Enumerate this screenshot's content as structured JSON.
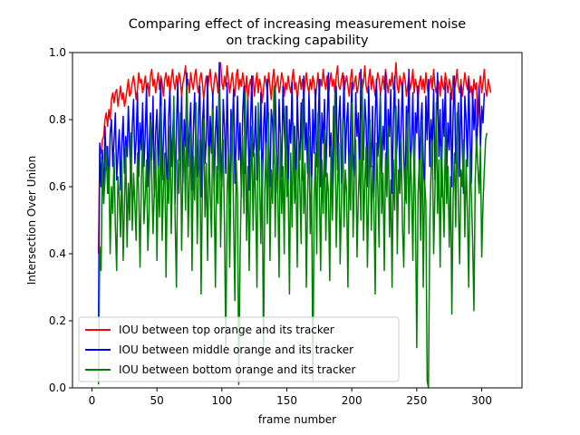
{
  "chart_data": {
    "type": "line",
    "title_lines": [
      "Comparing effect of increasing measurement noise",
      "on tracking capability"
    ],
    "xlabel": "frame number",
    "ylabel": "Intersection Over Union",
    "xlim": [
      -15,
      331
    ],
    "ylim": [
      0.0,
      1.0
    ],
    "xticks": [
      0,
      50,
      100,
      150,
      200,
      250,
      300
    ],
    "yticks": [
      0.0,
      0.2,
      0.4,
      0.6,
      0.8,
      1.0
    ],
    "xtick_labels": [
      "0",
      "50",
      "100",
      "150",
      "200",
      "250",
      "300"
    ],
    "ytick_labels": [
      "0.0",
      "0.2",
      "0.4",
      "0.6",
      "0.8",
      "1.0"
    ],
    "legend_position": "lower-left",
    "grid": false,
    "x": {
      "start": 5,
      "end": 315,
      "step": 1
    },
    "series": [
      {
        "name": "IOU between top orange and its tracker",
        "color": "#ff0000",
        "values": [
          0.4,
          0.72,
          0.7,
          0.74,
          0.75,
          0.8,
          0.82,
          0.78,
          0.83,
          0.8,
          0.86,
          0.88,
          0.85,
          0.88,
          0.89,
          0.84,
          0.87,
          0.9,
          0.86,
          0.88,
          0.84,
          0.86,
          0.89,
          0.92,
          0.87,
          0.88,
          0.91,
          0.93,
          0.9,
          0.86,
          0.89,
          0.94,
          0.91,
          0.92,
          0.88,
          0.9,
          0.93,
          0.89,
          0.91,
          0.87,
          0.93,
          0.95,
          0.9,
          0.92,
          0.88,
          0.91,
          0.94,
          0.89,
          0.93,
          0.91,
          0.87,
          0.92,
          0.94,
          0.9,
          0.93,
          0.88,
          0.92,
          0.95,
          0.91,
          0.89,
          0.93,
          0.9,
          0.94,
          0.92,
          0.87,
          0.91,
          0.93,
          0.96,
          0.9,
          0.92,
          0.88,
          0.94,
          0.91,
          0.89,
          0.93,
          0.95,
          0.9,
          0.88,
          0.92,
          0.94,
          0.91,
          0.86,
          0.9,
          0.93,
          0.89,
          0.92,
          0.95,
          0.9,
          0.87,
          0.91,
          0.94,
          0.92,
          0.88,
          0.95,
          0.97,
          0.91,
          0.89,
          0.93,
          0.9,
          0.96,
          0.92,
          0.88,
          0.91,
          0.94,
          0.9,
          0.87,
          0.93,
          0.95,
          0.89,
          0.92,
          0.9,
          0.94,
          0.91,
          0.88,
          0.93,
          0.86,
          0.9,
          0.92,
          0.89,
          0.93,
          0.87,
          0.91,
          0.94,
          0.88,
          0.92,
          0.9,
          0.85,
          0.89,
          0.93,
          0.91,
          0.88,
          0.94,
          0.9,
          0.86,
          0.92,
          0.95,
          0.89,
          0.91,
          0.93,
          0.88,
          0.9,
          0.94,
          0.92,
          0.87,
          0.91,
          0.89,
          0.93,
          0.9,
          0.88,
          0.92,
          0.95,
          0.89,
          0.91,
          0.86,
          0.9,
          0.93,
          0.89,
          0.92,
          0.87,
          0.91,
          0.94,
          0.9,
          0.88,
          0.92,
          0.89,
          0.93,
          0.91,
          0.86,
          0.9,
          0.94,
          0.88,
          0.92,
          0.9,
          0.95,
          0.91,
          0.89,
          0.93,
          0.87,
          0.91,
          0.94,
          0.9,
          0.92,
          0.88,
          0.93,
          0.96,
          0.9,
          0.89,
          0.92,
          0.94,
          0.88,
          0.91,
          0.93,
          0.9,
          0.87,
          0.92,
          0.95,
          0.89,
          0.91,
          0.93,
          0.88,
          0.9,
          0.94,
          0.92,
          0.89,
          0.91,
          0.96,
          0.9,
          0.88,
          0.92,
          0.95,
          0.89,
          0.93,
          0.9,
          0.87,
          0.91,
          0.94,
          0.92,
          0.88,
          0.9,
          0.93,
          0.89,
          0.95,
          0.91,
          0.88,
          0.92,
          0.9,
          0.94,
          0.89,
          0.91,
          0.97,
          0.9,
          0.88,
          0.93,
          0.91,
          0.89,
          0.94,
          0.92,
          0.87,
          0.9,
          0.93,
          0.89,
          0.91,
          0.95,
          0.88,
          0.92,
          0.9,
          0.86,
          0.91,
          0.93,
          0.89,
          0.92,
          0.88,
          0.94,
          0.9,
          0.87,
          0.91,
          0.93,
          0.89,
          0.95,
          0.9,
          0.88,
          0.92,
          0.91,
          0.87,
          0.93,
          0.9,
          0.89,
          0.94,
          0.91,
          0.88,
          0.92,
          0.9,
          0.86,
          0.93,
          0.89,
          0.91,
          0.95,
          0.9,
          0.88,
          0.92,
          0.87,
          0.9,
          0.94,
          0.91,
          0.89,
          0.93,
          0.88,
          0.9,
          0.86,
          0.92,
          0.89,
          0.91,
          0.78,
          0.9,
          0.93,
          0.88,
          0.91,
          0.95,
          0.89,
          0.87,
          0.92,
          0.9,
          0.88
        ]
      },
      {
        "name": "IOU between middle orange and its tracker",
        "color": "#0000ff",
        "values": [
          0.21,
          0.73,
          0.6,
          0.71,
          0.55,
          0.78,
          0.65,
          0.72,
          0.58,
          0.76,
          0.8,
          0.66,
          0.74,
          0.82,
          0.62,
          0.7,
          0.77,
          0.59,
          0.73,
          0.81,
          0.64,
          0.75,
          0.69,
          0.84,
          0.72,
          0.61,
          0.78,
          0.86,
          0.67,
          0.74,
          0.88,
          0.63,
          0.79,
          0.71,
          0.85,
          0.66,
          0.76,
          0.9,
          0.6,
          0.73,
          0.82,
          0.68,
          0.87,
          0.57,
          0.76,
          0.83,
          0.65,
          0.79,
          0.92,
          0.62,
          0.74,
          0.86,
          0.7,
          0.58,
          0.81,
          0.89,
          0.66,
          0.75,
          0.84,
          0.55,
          0.78,
          0.91,
          0.68,
          0.73,
          0.87,
          0.61,
          0.8,
          0.72,
          0.94,
          0.66,
          0.77,
          0.85,
          0.59,
          0.76,
          0.88,
          0.7,
          0.63,
          0.82,
          0.9,
          0.57,
          0.79,
          0.86,
          0.67,
          0.74,
          0.93,
          0.62,
          0.81,
          0.7,
          0.88,
          0.58,
          0.76,
          0.84,
          0.65,
          0.97,
          0.72,
          0.6,
          0.86,
          0.78,
          0.64,
          0.91,
          0.7,
          0.55,
          0.83,
          0.76,
          0.89,
          0.61,
          0.74,
          0.87,
          0.68,
          0.79,
          0.57,
          0.82,
          0.9,
          0.64,
          0.75,
          0.86,
          0.59,
          0.78,
          0.93,
          0.69,
          0.73,
          0.84,
          0.62,
          0.8,
          0.71,
          0.88,
          0.56,
          0.77,
          0.85,
          0.66,
          0.92,
          0.74,
          0.6,
          0.83,
          0.79,
          0.67,
          0.89,
          0.72,
          0.58,
          0.86,
          0.75,
          0.63,
          0.9,
          0.77,
          0.69,
          0.84,
          0.61,
          0.8,
          0.73,
          0.91,
          0.65,
          0.78,
          0.57,
          0.87,
          0.74,
          0.68,
          0.85,
          0.62,
          0.93,
          0.71,
          0.79,
          0.64,
          0.88,
          0.76,
          0.59,
          0.83,
          0.7,
          0.89,
          0.66,
          0.75,
          0.92,
          0.6,
          0.82,
          0.73,
          0.86,
          0.63,
          0.78,
          0.94,
          0.69,
          0.76,
          0.56,
          0.84,
          0.72,
          0.9,
          0.65,
          0.8,
          0.87,
          0.61,
          0.74,
          0.93,
          0.67,
          0.79,
          0.85,
          0.58,
          0.77,
          0.91,
          0.7,
          0.63,
          0.88,
          0.75,
          0.82,
          0.62,
          0.95,
          0.73,
          0.68,
          0.86,
          0.79,
          0.6,
          0.9,
          0.74,
          0.66,
          0.84,
          0.57,
          0.81,
          0.92,
          0.69,
          0.76,
          0.88,
          0.64,
          0.78,
          0.71,
          0.94,
          0.62,
          0.83,
          0.75,
          0.89,
          0.58,
          0.8,
          0.93,
          0.67,
          0.74,
          0.86,
          0.61,
          0.79,
          0.91,
          0.7,
          0.56,
          0.84,
          0.77,
          0.95,
          0.65,
          0.73,
          0.88,
          0.6,
          0.82,
          0.76,
          0.9,
          0.63,
          0.78,
          0.85,
          0.68,
          0.59,
          0.87,
          0.74,
          0.92,
          0.66,
          0.8,
          0.72,
          0.89,
          0.62,
          0.77,
          0.94,
          0.69,
          0.83,
          0.57,
          0.86,
          0.75,
          0.91,
          0.64,
          0.79,
          0.71,
          0.88,
          0.6,
          0.82,
          0.93,
          0.67,
          0.76,
          0.85,
          0.63,
          0.9,
          0.73,
          0.58,
          0.87,
          0.8,
          0.66,
          0.92,
          0.74,
          0.61,
          0.89,
          0.77,
          0.86,
          0.69,
          0.82,
          0.9,
          0.72,
          0.84,
          0.79,
          0.88
        ]
      },
      {
        "name": "IOU between bottom orange and its tracker",
        "color": "#008000",
        "values": [
          0.01,
          0.42,
          0.35,
          0.68,
          0.55,
          0.62,
          0.72,
          0.58,
          0.66,
          0.4,
          0.6,
          0.52,
          0.7,
          0.48,
          0.35,
          0.63,
          0.57,
          0.45,
          0.68,
          0.38,
          0.55,
          0.72,
          0.42,
          0.61,
          0.5,
          0.76,
          0.47,
          0.64,
          0.55,
          0.44,
          0.7,
          0.58,
          0.36,
          0.62,
          0.75,
          0.49,
          0.57,
          0.68,
          0.41,
          0.53,
          0.8,
          0.63,
          0.46,
          0.59,
          0.72,
          0.38,
          0.66,
          0.51,
          0.84,
          0.44,
          0.6,
          0.7,
          0.33,
          0.62,
          0.55,
          0.78,
          0.46,
          0.65,
          0.87,
          0.5,
          0.3,
          0.68,
          0.58,
          0.82,
          0.41,
          0.64,
          0.73,
          0.53,
          0.9,
          0.45,
          0.61,
          0.76,
          0.35,
          0.69,
          0.56,
          0.85,
          0.43,
          0.64,
          0.74,
          0.28,
          0.6,
          0.8,
          0.51,
          0.67,
          0.38,
          0.72,
          0.58,
          0.45,
          0.83,
          0.61,
          0.3,
          0.66,
          0.55,
          0.9,
          0.42,
          0.63,
          0.74,
          0.48,
          0.12,
          0.58,
          0.7,
          0.36,
          0.64,
          0.82,
          0.5,
          0.26,
          0.68,
          0.57,
          0.01,
          0.4,
          0.62,
          0.75,
          0.52,
          0.88,
          0.44,
          0.66,
          0.35,
          0.6,
          0.78,
          0.47,
          0.7,
          0.56,
          0.3,
          0.85,
          0.62,
          0.43,
          0.68,
          0.1,
          0.58,
          0.73,
          0.49,
          0.82,
          0.38,
          0.65,
          0.55,
          0.9,
          0.45,
          0.7,
          0.6,
          0.33,
          0.76,
          0.52,
          0.66,
          0.4,
          0.84,
          0.57,
          0.62,
          0.28,
          0.7,
          0.48,
          0.79,
          0.55,
          0.65,
          0.36,
          0.74,
          0.6,
          0.43,
          0.86,
          0.52,
          0.67,
          0.3,
          0.58,
          0.75,
          0.46,
          0.63,
          0.02,
          0.55,
          0.7,
          0.4,
          0.82,
          0.6,
          0.35,
          0.68,
          0.52,
          0.77,
          0.44,
          0.64,
          0.58,
          0.32,
          0.72,
          0.5,
          0.66,
          0.88,
          0.42,
          0.6,
          0.73,
          0.37,
          0.55,
          0.8,
          0.48,
          0.65,
          0.58,
          0.3,
          0.7,
          0.53,
          0.85,
          0.45,
          0.63,
          0.74,
          0.39,
          0.57,
          0.68,
          0.5,
          0.92,
          0.44,
          0.61,
          0.72,
          0.36,
          0.58,
          0.8,
          0.47,
          0.66,
          0.55,
          0.28,
          0.73,
          0.6,
          0.42,
          0.87,
          0.52,
          0.64,
          0.35,
          0.7,
          0.57,
          0.78,
          0.45,
          0.62,
          0.3,
          0.68,
          0.53,
          0.84,
          0.4,
          0.65,
          0.58,
          0.74,
          0.48,
          0.36,
          0.66,
          0.55,
          0.82,
          0.46,
          0.7,
          0.6,
          0.38,
          0.75,
          0.52,
          0.12,
          0.58,
          0.68,
          0.44,
          0.8,
          0.3,
          0.62,
          0.55,
          0.02,
          0.0,
          0.48,
          0.65,
          0.74,
          0.4,
          0.58,
          0.85,
          0.52,
          0.68,
          0.36,
          0.72,
          0.6,
          0.45,
          0.78,
          0.55,
          0.66,
          0.42,
          0.63,
          0.22,
          0.57,
          0.7,
          0.48,
          0.82,
          0.55,
          0.37,
          0.65,
          0.6,
          0.74,
          0.45,
          0.68,
          0.52,
          0.3,
          0.7,
          0.58,
          0.44,
          0.23,
          0.62,
          0.75,
          0.66,
          0.58,
          0.72,
          0.39,
          0.55,
          0.65,
          0.74,
          0.76
        ]
      }
    ]
  }
}
